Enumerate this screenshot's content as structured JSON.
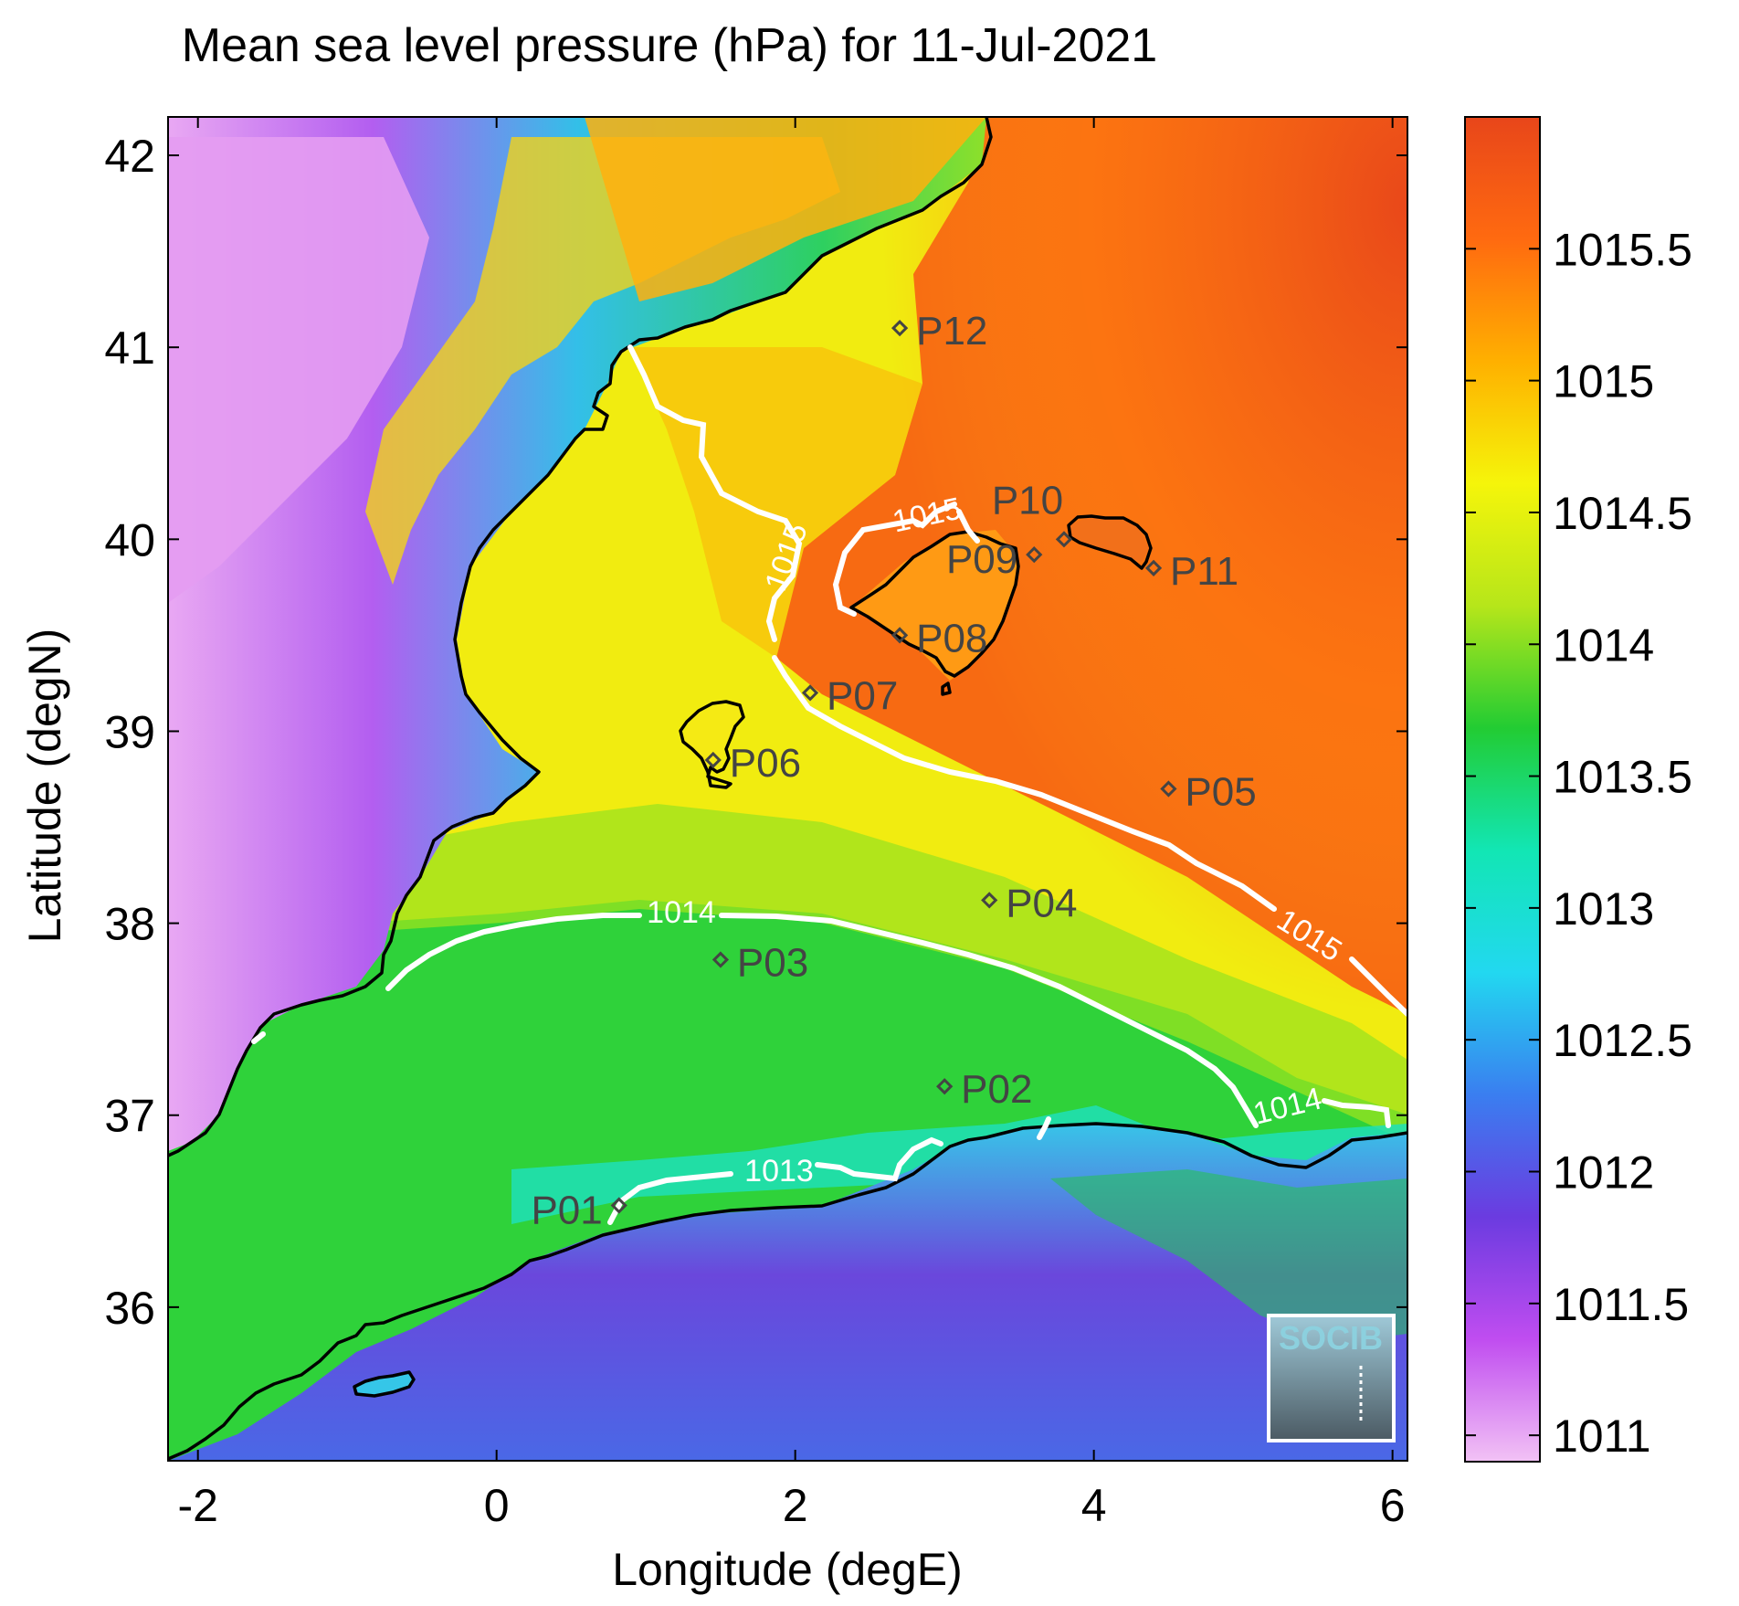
{
  "title": "Mean sea level pressure (hPa) for 11-Jul-2021",
  "logo_text": "SOCIB",
  "chart_data": {
    "type": "heatmap",
    "title": "Mean sea level pressure (hPa) for 11-Jul-2021",
    "xlabel": "Longitude (degE)",
    "ylabel": "Latitude (degN)",
    "xlim": [
      -2.2,
      6.1
    ],
    "ylim": [
      35.2,
      42.2
    ],
    "x_ticks": [
      "-2",
      "0",
      "2",
      "4",
      "6"
    ],
    "y_ticks": [
      "36",
      "37",
      "38",
      "39",
      "40",
      "41",
      "42"
    ],
    "colorbar": {
      "range": [
        1010.9,
        1016.0
      ],
      "ticks": [
        "1011",
        "1011.5",
        "1012",
        "1012.5",
        "1013",
        "1013.5",
        "1014",
        "1014.5",
        "1015",
        "1015.5"
      ],
      "colormap": [
        "#f2c2f5",
        "#c04df0",
        "#6b3be0",
        "#3a7ef0",
        "#22d8f0",
        "#12e6b4",
        "#22cc33",
        "#b6e61a",
        "#f5f50a",
        "#ffb000",
        "#ff6a10",
        "#e8461a"
      ]
    },
    "contour_labels": [
      "1013",
      "1014",
      "1014",
      "1015",
      "1015",
      "1015"
    ],
    "stations": [
      {
        "name": "P01",
        "lon": 0.82,
        "lat": 36.53
      },
      {
        "name": "P02",
        "lon": 3.0,
        "lat": 37.15
      },
      {
        "name": "P03",
        "lon": 1.5,
        "lat": 37.81
      },
      {
        "name": "P04",
        "lon": 3.3,
        "lat": 38.12
      },
      {
        "name": "P05",
        "lon": 4.5,
        "lat": 38.7
      },
      {
        "name": "P06",
        "lon": 1.45,
        "lat": 38.85
      },
      {
        "name": "P07",
        "lon": 2.1,
        "lat": 39.2
      },
      {
        "name": "P08",
        "lon": 2.7,
        "lat": 39.5
      },
      {
        "name": "P09",
        "lon": 3.6,
        "lat": 39.92
      },
      {
        "name": "P10",
        "lon": 3.8,
        "lat": 40.0
      },
      {
        "name": "P11",
        "lon": 4.4,
        "lat": 39.85
      },
      {
        "name": "P12",
        "lon": 2.7,
        "lat": 41.1
      }
    ]
  }
}
